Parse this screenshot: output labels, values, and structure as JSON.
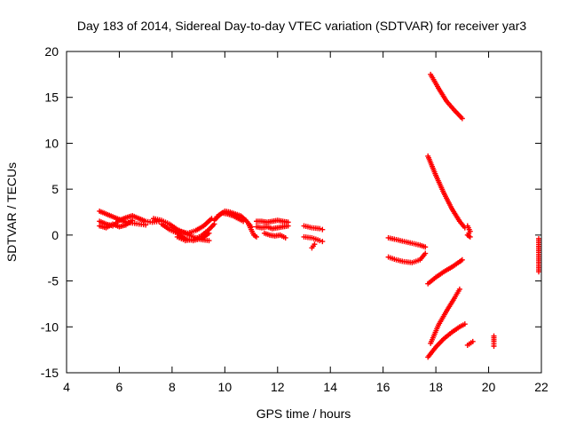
{
  "chart_data": {
    "type": "scatter",
    "title": "Day 183 of 2014, Sidereal Day-to-day VTEC variation (SDTVAR) for receiver yar3",
    "xlabel": "GPS time / hours",
    "ylabel": "SDTVAR / TECUs",
    "xlim": [
      4,
      22
    ],
    "ylim": [
      -15,
      20
    ],
    "xticks": [
      "4",
      "6",
      "8",
      "10",
      "12",
      "14",
      "16",
      "18",
      "20",
      "22"
    ],
    "yticks": [
      "20",
      "15",
      "10",
      "5",
      "0",
      "-5",
      "-10",
      "-15"
    ],
    "grid": false,
    "marker": "plus",
    "color": "#ff0000",
    "segments": [
      {
        "x": [
          5.25,
          5.5,
          5.75,
          6.0,
          6.25,
          6.5,
          6.75,
          7.0,
          7.25,
          7.5
        ],
        "y": [
          1.5,
          1.2,
          1.0,
          1.6,
          1.9,
          2.1,
          1.8,
          1.5,
          1.4,
          1.5
        ]
      },
      {
        "x": [
          5.25,
          5.5,
          5.75,
          6.0,
          6.25,
          6.5,
          6.75,
          7.0
        ],
        "y": [
          2.6,
          2.3,
          2.0,
          1.7,
          1.4,
          1.3,
          1.2,
          1.1
        ]
      },
      {
        "x": [
          5.25,
          5.5,
          5.75,
          6.0,
          6.25,
          6.5
        ],
        "y": [
          1.0,
          0.8,
          1.2,
          0.9,
          1.1,
          1.6
        ]
      },
      {
        "x": [
          7.3,
          7.6,
          7.9,
          8.2,
          8.5,
          8.8,
          9.1,
          9.4
        ],
        "y": [
          1.8,
          1.6,
          1.2,
          0.6,
          0.2,
          -0.2,
          -0.5,
          -0.6
        ]
      },
      {
        "x": [
          7.6,
          7.9,
          8.2,
          8.5,
          8.8,
          9.1,
          9.4
        ],
        "y": [
          1.2,
          0.6,
          0.2,
          -0.4,
          -0.6,
          -0.4,
          0.2
        ]
      },
      {
        "x": [
          8.0,
          8.3,
          8.6,
          8.9,
          9.2,
          9.5
        ],
        "y": [
          0.8,
          0.4,
          0.2,
          0.5,
          1.0,
          1.8
        ]
      },
      {
        "x": [
          8.2,
          8.5,
          8.8,
          9.1,
          9.4,
          9.6
        ],
        "y": [
          -0.2,
          -0.6,
          -0.5,
          -0.1,
          0.6,
          1.2
        ]
      },
      {
        "x": [
          9.6,
          9.8,
          10.0,
          10.2,
          10.4,
          10.6,
          10.8,
          11.0
        ],
        "y": [
          1.6,
          2.2,
          2.6,
          2.5,
          2.3,
          2.1,
          1.6,
          0.9
        ]
      },
      {
        "x": [
          9.7,
          9.9,
          10.1,
          10.3,
          10.5,
          10.7
        ],
        "y": [
          2.0,
          2.4,
          2.3,
          2.1,
          1.8,
          1.5
        ]
      },
      {
        "x": [
          10.9,
          11.0,
          11.1,
          11.2
        ],
        "y": [
          1.2,
          0.6,
          0.0,
          -0.2
        ]
      },
      {
        "x": [
          11.2,
          11.4,
          11.6,
          11.8,
          12.0,
          12.2,
          12.4
        ],
        "y": [
          1.5,
          1.5,
          1.4,
          1.5,
          1.6,
          1.5,
          1.4
        ]
      },
      {
        "x": [
          11.2,
          11.4,
          11.6,
          11.8,
          12.0,
          12.2,
          12.4
        ],
        "y": [
          0.9,
          0.8,
          0.9,
          0.7,
          0.8,
          0.9,
          1.0
        ]
      },
      {
        "x": [
          11.5,
          11.7,
          11.9,
          12.1,
          12.3
        ],
        "y": [
          0.2,
          0.0,
          -0.1,
          0.0,
          -0.3
        ]
      },
      {
        "x": [
          13.0,
          13.3,
          13.6,
          13.7
        ],
        "y": [
          1.0,
          0.8,
          0.7,
          0.6
        ]
      },
      {
        "x": [
          13.0,
          13.3,
          13.6,
          13.7
        ],
        "y": [
          -0.2,
          -0.3,
          -0.6,
          -0.7
        ]
      },
      {
        "x": [
          13.4,
          13.3
        ],
        "y": [
          -1.0,
          -1.4
        ]
      },
      {
        "x": [
          16.2,
          16.5,
          16.8,
          17.1,
          17.4,
          17.6
        ],
        "y": [
          -0.3,
          -0.5,
          -0.7,
          -0.9,
          -1.1,
          -1.3
        ]
      },
      {
        "x": [
          16.2,
          16.5,
          16.8,
          17.1,
          17.4,
          17.6
        ],
        "y": [
          -2.4,
          -2.7,
          -2.9,
          -3.0,
          -2.7,
          -2.0
        ]
      },
      {
        "x": [
          17.8,
          18.1,
          18.4,
          18.7,
          19.0
        ],
        "y": [
          17.5,
          16.0,
          14.6,
          13.6,
          12.7
        ]
      },
      {
        "x": [
          17.7,
          18.0,
          18.3,
          18.6,
          18.9,
          19.1
        ],
        "y": [
          8.6,
          6.5,
          4.6,
          2.9,
          1.5,
          0.8
        ]
      },
      {
        "x": [
          19.2,
          19.3,
          19.2,
          19.3
        ],
        "y": [
          1.0,
          0.4,
          0.0,
          -0.2
        ]
      },
      {
        "x": [
          17.7,
          18.0,
          18.3,
          18.6,
          18.9,
          19.0
        ],
        "y": [
          -5.3,
          -4.6,
          -4.0,
          -3.5,
          -2.9,
          -2.7
        ]
      },
      {
        "x": [
          17.8,
          18.1,
          18.4,
          18.7,
          18.9
        ],
        "y": [
          -11.8,
          -9.8,
          -8.3,
          -6.9,
          -5.9
        ]
      },
      {
        "x": [
          17.7,
          18.0,
          18.3,
          18.6,
          18.9,
          19.1
        ],
        "y": [
          -13.3,
          -12.2,
          -11.3,
          -10.6,
          -10.0,
          -9.7
        ]
      },
      {
        "x": [
          19.2,
          19.4
        ],
        "y": [
          -12.0,
          -11.6
        ]
      },
      {
        "x": [
          20.2,
          20.2,
          20.2
        ],
        "y": [
          -11.0,
          -11.6,
          -12.1
        ]
      },
      {
        "x": [
          21.9,
          21.9
        ],
        "y": [
          -0.4,
          -4.0
        ]
      }
    ]
  }
}
